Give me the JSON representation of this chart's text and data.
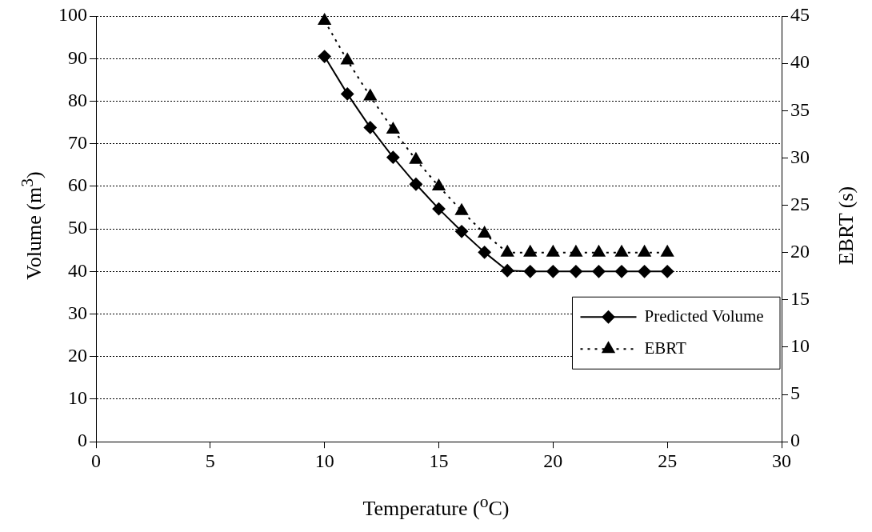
{
  "chart_data": {
    "type": "line",
    "xlabel": "Temperature ($^{o}$C)",
    "ylabel": "Volume (m$^{3}$)",
    "y2label": "EBRT (s)",
    "x": [
      10,
      11,
      12,
      13,
      14,
      15,
      16,
      17,
      18,
      19,
      20,
      21,
      22,
      23,
      24,
      25
    ],
    "series": [
      {
        "name": "Predicted Volume",
        "color": "#000000",
        "marker": "diamond",
        "line_style": "solid",
        "values": [
          90.5,
          81.7,
          73.8,
          66.8,
          60.5,
          54.7,
          49.4,
          44.5,
          40.2,
          40,
          40,
          40,
          40,
          40,
          40,
          40
        ]
      },
      {
        "name": "EBRT",
        "color": "#000000",
        "marker": "triangle",
        "line_style": "dotted",
        "axis": "y2",
        "values": [
          44.5,
          40.3,
          36.5,
          33,
          29.8,
          27,
          24.4,
          22,
          20,
          20,
          20,
          20,
          20,
          20,
          20,
          20
        ]
      }
    ],
    "xlim": [
      0,
      30
    ],
    "xticks": [
      0,
      5,
      10,
      15,
      20,
      25,
      30
    ],
    "ylim": [
      0,
      100
    ],
    "yticks": [
      0,
      10,
      20,
      30,
      40,
      50,
      60,
      70,
      80,
      90,
      100
    ],
    "y2lim": [
      0,
      45
    ],
    "y2ticks": [
      0,
      5,
      10,
      15,
      20,
      25,
      30,
      35,
      40,
      45
    ],
    "grid": "y",
    "legend": "right"
  }
}
